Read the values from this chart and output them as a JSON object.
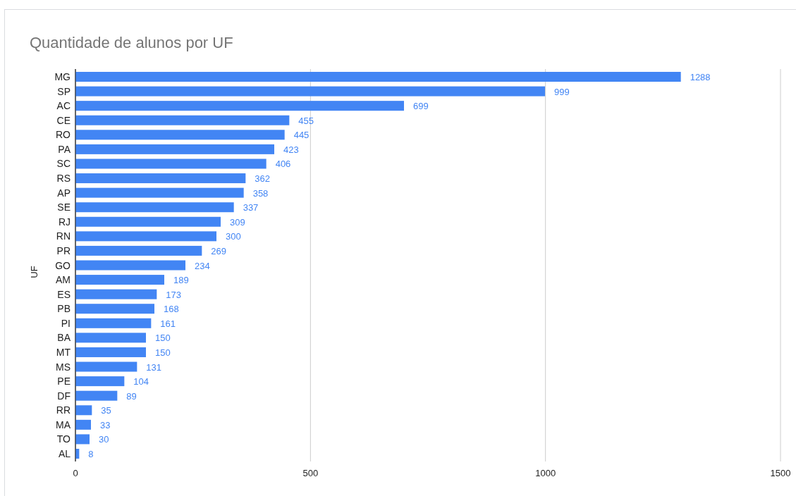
{
  "chart_data": {
    "type": "bar",
    "orientation": "horizontal",
    "title": "Quantidade de alunos por UF",
    "ylabel": "UF",
    "categories": [
      "MG",
      "SP",
      "AC",
      "CE",
      "RO",
      "PA",
      "SC",
      "RS",
      "AP",
      "SE",
      "RJ",
      "RN",
      "PR",
      "GO",
      "AM",
      "ES",
      "PB",
      "PI",
      "BA",
      "MT",
      "MS",
      "PE",
      "DF",
      "RR",
      "MA",
      "TO",
      "AL"
    ],
    "values": [
      1288,
      999,
      699,
      455,
      445,
      423,
      406,
      362,
      358,
      337,
      309,
      300,
      269,
      234,
      189,
      173,
      168,
      161,
      150,
      150,
      131,
      104,
      89,
      35,
      33,
      30,
      8
    ],
    "color": "#4285f4",
    "xlim": [
      0,
      1500
    ],
    "xticks": [
      0,
      500,
      1000,
      1500
    ],
    "grid": "x",
    "data_labels": true
  }
}
